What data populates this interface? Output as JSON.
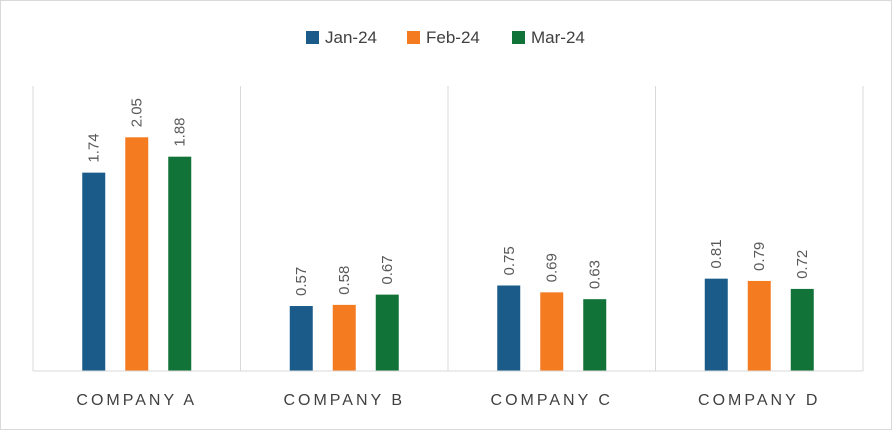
{
  "chart_data": {
    "type": "bar",
    "title": "",
    "xlabel": "",
    "ylabel": "",
    "categories": [
      "COMPANY A",
      "COMPANY B",
      "COMPANY C",
      "COMPANY D"
    ],
    "series": [
      {
        "name": "Jan-24",
        "color": "#1a5b8a",
        "values": [
          1.74,
          0.57,
          0.75,
          0.81
        ]
      },
      {
        "name": "Feb-24",
        "color": "#f47b20",
        "values": [
          2.05,
          0.58,
          0.69,
          0.79
        ]
      },
      {
        "name": "Mar-24",
        "color": "#127338",
        "values": [
          1.88,
          0.67,
          0.63,
          0.72
        ]
      }
    ],
    "ylim": [
      0,
      2.5
    ],
    "y_axis_labels_shown": false,
    "data_labels": true,
    "data_label_rotation": "vertical",
    "legend_position": "top",
    "category_separators": true
  }
}
